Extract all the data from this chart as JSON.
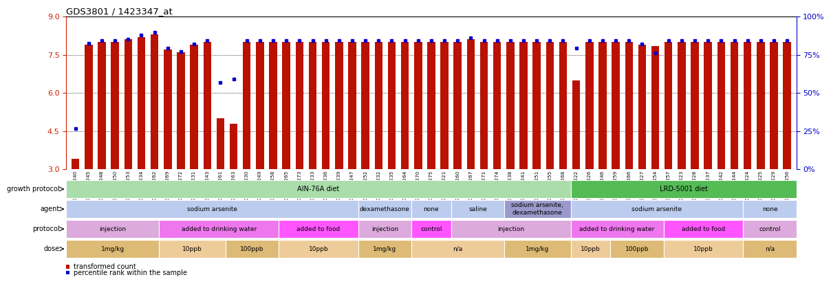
{
  "title": "GDS3801 / 1423347_at",
  "samples": [
    "GSM279240",
    "GSM279245",
    "GSM279248",
    "GSM279250",
    "GSM279253",
    "GSM279234",
    "GSM279262",
    "GSM279269",
    "GSM279272",
    "GSM279231",
    "GSM279243",
    "GSM279261",
    "GSM279263",
    "GSM279230",
    "GSM279249",
    "GSM279258",
    "GSM279265",
    "GSM279273",
    "GSM279233",
    "GSM279236",
    "GSM279239",
    "GSM279247",
    "GSM279252",
    "GSM279232",
    "GSM279235",
    "GSM279264",
    "GSM279270",
    "GSM279275",
    "GSM279221",
    "GSM279260",
    "GSM279267",
    "GSM279271",
    "GSM279274",
    "GSM279238",
    "GSM279241",
    "GSM279251",
    "GSM279255",
    "GSM279268",
    "GSM279222",
    "GSM279226",
    "GSM279246",
    "GSM279259",
    "GSM279266",
    "GSM279227",
    "GSM279254",
    "GSM279257",
    "GSM279223",
    "GSM279228",
    "GSM279237",
    "GSM279242",
    "GSM279244",
    "GSM279224",
    "GSM279225",
    "GSM279229",
    "GSM279256"
  ],
  "red_values": [
    3.4,
    7.9,
    8.0,
    8.0,
    8.1,
    8.2,
    8.3,
    7.7,
    7.6,
    7.9,
    8.0,
    5.0,
    4.8,
    8.0,
    8.0,
    8.0,
    8.0,
    8.0,
    8.0,
    8.0,
    8.0,
    8.0,
    8.0,
    8.0,
    8.0,
    8.0,
    8.0,
    8.0,
    8.0,
    8.0,
    8.1,
    8.0,
    8.0,
    8.0,
    8.0,
    8.0,
    8.0,
    8.0,
    6.5,
    8.0,
    8.0,
    8.0,
    8.0,
    7.9,
    7.85,
    8.0,
    8.0,
    8.0,
    8.0,
    8.0,
    8.0,
    8.0,
    8.0,
    8.0,
    8.0
  ],
  "blue_values": [
    4.6,
    7.95,
    8.07,
    8.07,
    8.12,
    8.27,
    8.37,
    7.77,
    7.62,
    7.92,
    8.07,
    6.4,
    6.55,
    8.07,
    8.07,
    8.07,
    8.07,
    8.07,
    8.07,
    8.07,
    8.07,
    8.07,
    8.07,
    8.07,
    8.07,
    8.07,
    8.07,
    8.07,
    8.07,
    8.07,
    8.17,
    8.07,
    8.07,
    8.07,
    8.07,
    8.07,
    8.07,
    8.07,
    7.77,
    8.07,
    8.07,
    8.07,
    8.07,
    7.92,
    7.57,
    8.07,
    8.07,
    8.07,
    8.07,
    8.07,
    8.07,
    8.07,
    8.07,
    8.07,
    8.07
  ],
  "ymin": 3.0,
  "ymax": 9.0,
  "yticks_left": [
    3.0,
    4.5,
    6.0,
    7.5,
    9.0
  ],
  "yticks_right": [
    0,
    25,
    50,
    75,
    100
  ],
  "ytick_right_labels": [
    "0%",
    "25%",
    "50%",
    "75%",
    "100%"
  ],
  "bar_color": "#bb1100",
  "dot_color": "#0000cc",
  "growth_protocol_segments": [
    {
      "label": "AIN-76A diet",
      "start": 0,
      "end": 38,
      "color": "#aaddaa"
    },
    {
      "label": "LRD-5001 diet",
      "start": 38,
      "end": 55,
      "color": "#55bb55"
    }
  ],
  "agent_segments": [
    {
      "label": "sodium arsenite",
      "start": 0,
      "end": 22,
      "color": "#bbccee"
    },
    {
      "label": "dexamethasone",
      "start": 22,
      "end": 26,
      "color": "#bbccee"
    },
    {
      "label": "none",
      "start": 26,
      "end": 29,
      "color": "#bbccee"
    },
    {
      "label": "saline",
      "start": 29,
      "end": 33,
      "color": "#bbccee"
    },
    {
      "label": "sodium arsenite,\ndexamethasone",
      "start": 33,
      "end": 38,
      "color": "#9999cc"
    },
    {
      "label": "sodium arsenite",
      "start": 38,
      "end": 51,
      "color": "#bbccee"
    },
    {
      "label": "none",
      "start": 51,
      "end": 55,
      "color": "#bbccee"
    }
  ],
  "protocol_segments": [
    {
      "label": "injection",
      "start": 0,
      "end": 7,
      "color": "#ddaadd"
    },
    {
      "label": "added to drinking water",
      "start": 7,
      "end": 16,
      "color": "#ee77ee"
    },
    {
      "label": "added to food",
      "start": 16,
      "end": 22,
      "color": "#ff55ff"
    },
    {
      "label": "injection",
      "start": 22,
      "end": 26,
      "color": "#ddaadd"
    },
    {
      "label": "control",
      "start": 26,
      "end": 29,
      "color": "#ff55ff"
    },
    {
      "label": "injection",
      "start": 29,
      "end": 38,
      "color": "#ddaadd"
    },
    {
      "label": "added to drinking water",
      "start": 38,
      "end": 45,
      "color": "#ee77ee"
    },
    {
      "label": "added to food",
      "start": 45,
      "end": 51,
      "color": "#ff55ff"
    },
    {
      "label": "control",
      "start": 51,
      "end": 55,
      "color": "#ddaadd"
    }
  ],
  "dose_segments": [
    {
      "label": "1mg/kg",
      "start": 0,
      "end": 7,
      "color": "#ddbb77"
    },
    {
      "label": "10ppb",
      "start": 7,
      "end": 12,
      "color": "#eecc99"
    },
    {
      "label": "100ppb",
      "start": 12,
      "end": 16,
      "color": "#ddbb77"
    },
    {
      "label": "10ppb",
      "start": 16,
      "end": 22,
      "color": "#eecc99"
    },
    {
      "label": "1mg/kg",
      "start": 22,
      "end": 26,
      "color": "#ddbb77"
    },
    {
      "label": "n/a",
      "start": 26,
      "end": 33,
      "color": "#eecc99"
    },
    {
      "label": "1mg/kg",
      "start": 33,
      "end": 38,
      "color": "#ddbb77"
    },
    {
      "label": "10ppb",
      "start": 38,
      "end": 41,
      "color": "#eecc99"
    },
    {
      "label": "100ppb",
      "start": 41,
      "end": 45,
      "color": "#ddbb77"
    },
    {
      "label": "10ppb",
      "start": 45,
      "end": 51,
      "color": "#eecc99"
    },
    {
      "label": "n/a",
      "start": 51,
      "end": 55,
      "color": "#ddbb77"
    }
  ],
  "row_labels": [
    "growth protocol",
    "agent",
    "protocol",
    "dose"
  ],
  "legend_items": [
    {
      "color": "#bb1100",
      "label": "transformed count"
    },
    {
      "color": "#0000cc",
      "label": "percentile rank within the sample"
    }
  ]
}
